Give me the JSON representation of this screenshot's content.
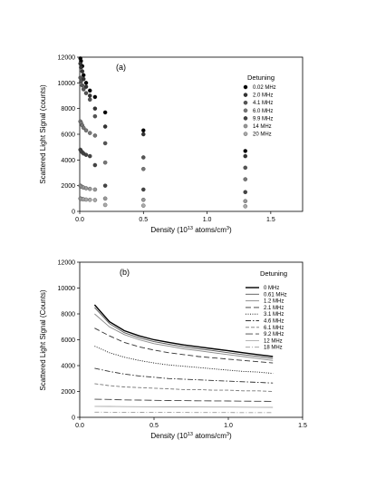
{
  "chart_data": [
    {
      "type": "scatter",
      "panel_label": "(a)",
      "xlabel": "Density (10",
      "xlabel_exp": "13",
      "xlabel_unit": " atoms/cm",
      "xlabel_unit_exp": "3",
      "xlabel_close": ")",
      "ylabel": "Scattered Light Signal (counts)",
      "xlim": [
        0,
        1.75
      ],
      "ylim": [
        0,
        12000
      ],
      "xticks": [
        0.0,
        0.5,
        1.0,
        1.5
      ],
      "xtick_labels": [
        "0.0",
        "0.5",
        "1.0",
        "1.5"
      ],
      "yticks": [
        0,
        2000,
        4000,
        6000,
        8000,
        10000,
        12000
      ],
      "ytick_labels": [
        "0",
        "2000",
        "4000",
        "6000",
        "8000",
        "10000",
        "12000"
      ],
      "legend_title": "Detuning",
      "legend_position": "top-right",
      "series": [
        {
          "name": "0.02 MHz",
          "color": "#000000",
          "x": [
            0.005,
            0.01,
            0.02,
            0.03,
            0.05,
            0.08,
            0.12,
            0.2,
            0.5,
            1.3
          ],
          "y": [
            11900,
            11700,
            11300,
            10600,
            10000,
            9400,
            8900,
            7700,
            6300,
            4700
          ]
        },
        {
          "name": "2.0 MHz",
          "color": "#333333",
          "x": [
            0.005,
            0.01,
            0.02,
            0.03,
            0.05,
            0.08,
            0.12,
            0.2,
            0.5,
            1.3
          ],
          "y": [
            11500,
            11200,
            10900,
            10300,
            9700,
            9000,
            8000,
            6600,
            6000,
            4300
          ]
        },
        {
          "name": "4.1 MHz",
          "color": "#555555",
          "x": [
            0.005,
            0.01,
            0.02,
            0.03,
            0.05,
            0.08,
            0.12,
            0.2,
            0.5,
            1.3
          ],
          "y": [
            10400,
            10100,
            9800,
            9500,
            9200,
            8700,
            7400,
            5300,
            4200,
            3400
          ]
        },
        {
          "name": "6.0 MHz",
          "color": "#777777",
          "x": [
            0.005,
            0.01,
            0.02,
            0.03,
            0.05,
            0.08,
            0.12,
            0.2,
            0.5,
            1.3
          ],
          "y": [
            7000,
            6900,
            6700,
            6500,
            6300,
            6100,
            5900,
            3800,
            3300,
            2500
          ]
        },
        {
          "name": "9.9 MHz",
          "color": "#444444",
          "x": [
            0.005,
            0.01,
            0.02,
            0.03,
            0.05,
            0.08,
            0.12,
            0.2,
            0.5,
            1.3
          ],
          "y": [
            4800,
            4700,
            4600,
            4500,
            4400,
            4300,
            3600,
            2000,
            1700,
            1500
          ]
        },
        {
          "name": "14 MHz",
          "color": "#999999",
          "x": [
            0.005,
            0.01,
            0.02,
            0.03,
            0.05,
            0.08,
            0.12,
            0.2,
            0.5,
            1.3
          ],
          "y": [
            2000,
            1950,
            1900,
            1850,
            1800,
            1750,
            1700,
            1000,
            900,
            800
          ]
        },
        {
          "name": "20 MHz",
          "color": "#aaaaaa",
          "x": [
            0.005,
            0.01,
            0.02,
            0.03,
            0.05,
            0.08,
            0.12,
            0.2,
            0.5,
            1.3
          ],
          "y": [
            1000,
            980,
            960,
            940,
            920,
            900,
            880,
            500,
            450,
            400
          ]
        }
      ]
    },
    {
      "type": "line",
      "panel_label": "(b)",
      "xlabel": "Density (10",
      "xlabel_exp": "13",
      "xlabel_unit": " atoms/cm",
      "xlabel_unit_exp": "3",
      "xlabel_close": ")",
      "ylabel": "Scattered Light Signal (Counts)",
      "xlim": [
        0,
        1.5
      ],
      "ylim": [
        0,
        12000
      ],
      "xticks": [
        0.0,
        0.5,
        1.0,
        1.5
      ],
      "xtick_labels": [
        "0.0",
        "0.5",
        "1.0",
        "1.5"
      ],
      "yticks": [
        0,
        2000,
        4000,
        6000,
        8000,
        10000,
        12000
      ],
      "ytick_labels": [
        "0",
        "2000",
        "4000",
        "6000",
        "8000",
        "10000",
        "12000"
      ],
      "legend_title": "Detuning",
      "legend_position": "top-right",
      "x": [
        0.1,
        0.2,
        0.3,
        0.4,
        0.5,
        0.6,
        0.7,
        0.8,
        0.9,
        1.0,
        1.1,
        1.2,
        1.3
      ],
      "series": [
        {
          "name": "0 MHz",
          "color": "#000000",
          "dash": "",
          "width": 1.4,
          "values": [
            8700,
            7400,
            6700,
            6300,
            6000,
            5800,
            5600,
            5450,
            5300,
            5150,
            5000,
            4850,
            4700
          ]
        },
        {
          "name": "0.61 MHz",
          "color": "#555555",
          "dash": "",
          "width": 0.9,
          "values": [
            8500,
            7250,
            6550,
            6150,
            5850,
            5650,
            5450,
            5300,
            5150,
            5000,
            4850,
            4700,
            4550
          ]
        },
        {
          "name": "1.2 MHz",
          "color": "#888888",
          "dash": "",
          "width": 0.9,
          "values": [
            8000,
            7000,
            6400,
            6000,
            5700,
            5500,
            5300,
            5150,
            5000,
            4850,
            4700,
            4550,
            4400
          ]
        },
        {
          "name": "2.1 MHz",
          "color": "#333333",
          "dash": "6,3",
          "width": 0.9,
          "values": [
            6900,
            6300,
            5800,
            5450,
            5200,
            5000,
            4850,
            4700,
            4600,
            4500,
            4400,
            4300,
            4200
          ]
        },
        {
          "name": "3.1 MHz",
          "color": "#000000",
          "dash": "1,1.5",
          "width": 0.9,
          "values": [
            5500,
            5000,
            4650,
            4400,
            4200,
            4050,
            3950,
            3850,
            3750,
            3650,
            3550,
            3500,
            3400
          ]
        },
        {
          "name": "4.6 MHz",
          "color": "#333333",
          "dash": "6,2,1.5,2",
          "width": 0.9,
          "values": [
            3800,
            3550,
            3350,
            3200,
            3100,
            3000,
            2950,
            2900,
            2850,
            2800,
            2750,
            2700,
            2650
          ]
        },
        {
          "name": "6.1 MHz",
          "color": "#777777",
          "dash": "4,2",
          "width": 0.9,
          "values": [
            2600,
            2450,
            2350,
            2300,
            2250,
            2200,
            2150,
            2150,
            2100,
            2100,
            2050,
            2050,
            2000
          ]
        },
        {
          "name": "9.2 MHz",
          "color": "#444444",
          "dash": "8,3",
          "width": 0.9,
          "values": [
            1400,
            1380,
            1350,
            1330,
            1310,
            1300,
            1290,
            1280,
            1270,
            1260,
            1250,
            1240,
            1230
          ]
        },
        {
          "name": "12 MHz",
          "color": "#aaaaaa",
          "dash": "",
          "width": 0.9,
          "values": [
            850,
            840,
            830,
            820,
            815,
            810,
            805,
            800,
            795,
            790,
            785,
            780,
            775
          ]
        },
        {
          "name": "18 MHz",
          "color": "#999999",
          "dash": "5,2,1,2",
          "width": 0.9,
          "values": [
            400,
            395,
            390,
            385,
            380,
            378,
            376,
            374,
            372,
            370,
            368,
            366,
            364
          ]
        }
      ]
    }
  ]
}
